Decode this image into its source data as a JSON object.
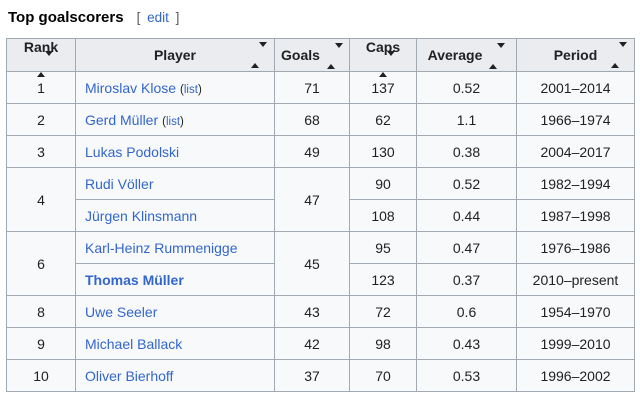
{
  "page": {
    "title": "Top goalscorers",
    "edit_open": "[ ",
    "edit_label": "edit",
    "edit_close": " ]"
  },
  "colors": {
    "link_blue": "#3366cc",
    "header_bg": "#eaecf0",
    "row_bg": "#f8f9fa",
    "border": "#a2a9b1",
    "text": "#202122"
  },
  "table": {
    "headers": [
      "Rank",
      "Player",
      "Goals",
      "Caps",
      "Average",
      "Period"
    ],
    "list_open": "(",
    "list_label": "list",
    "list_close": ")",
    "rows": [
      {
        "rank": "1",
        "player": "Miroslav Klose",
        "has_list": true,
        "goals": "71",
        "caps": "137",
        "average": "0.52",
        "period": "2001–2014"
      },
      {
        "rank": "2",
        "player": "Gerd Müller",
        "has_list": true,
        "goals": "68",
        "caps": "62",
        "average": "1.1",
        "period": "1966–1974"
      },
      {
        "rank": "3",
        "player": "Lukas Podolski",
        "has_list": false,
        "goals": "49",
        "caps": "130",
        "average": "0.38",
        "period": "2004–2017"
      },
      {
        "rank": "4",
        "player": "Rudi Völler",
        "has_list": false,
        "goals": "47",
        "caps": "90",
        "average": "0.52",
        "period": "1982–1994",
        "rank_rowspan": 2,
        "goals_rowspan": 2
      },
      {
        "player": "Jürgen Klinsmann",
        "has_list": false,
        "caps": "108",
        "average": "0.44",
        "period": "1987–1998"
      },
      {
        "rank": "6",
        "player": "Karl-Heinz Rummenigge",
        "has_list": false,
        "goals": "45",
        "caps": "95",
        "average": "0.47",
        "period": "1976–1986",
        "rank_rowspan": 2,
        "goals_rowspan": 2
      },
      {
        "player": "Thomas Müller",
        "has_list": false,
        "bold": true,
        "caps": "123",
        "average": "0.37",
        "period": "2010–present"
      },
      {
        "rank": "8",
        "player": "Uwe Seeler",
        "has_list": false,
        "goals": "43",
        "caps": "72",
        "average": "0.6",
        "period": "1954–1970"
      },
      {
        "rank": "9",
        "player": "Michael Ballack",
        "has_list": false,
        "goals": "42",
        "caps": "98",
        "average": "0.43",
        "period": "1999–2010"
      },
      {
        "rank": "10",
        "player": "Oliver Bierhoff",
        "has_list": false,
        "goals": "37",
        "caps": "70",
        "average": "0.53",
        "period": "1996–2002"
      }
    ]
  },
  "chart_data": {
    "type": "table",
    "title": "Top goalscorers",
    "columns": [
      "Rank",
      "Player",
      "Goals",
      "Caps",
      "Average",
      "Period"
    ],
    "rows": [
      [
        "1",
        "Miroslav Klose (list)",
        71,
        137,
        0.52,
        "2001–2014"
      ],
      [
        "2",
        "Gerd Müller (list)",
        68,
        62,
        1.1,
        "1966–1974"
      ],
      [
        "3",
        "Lukas Podolski",
        49,
        130,
        0.38,
        "2004–2017"
      ],
      [
        "4",
        "Rudi Völler",
        47,
        90,
        0.52,
        "1982–1994"
      ],
      [
        "4",
        "Jürgen Klinsmann",
        47,
        108,
        0.44,
        "1987–1998"
      ],
      [
        "6",
        "Karl-Heinz Rummenigge",
        45,
        95,
        0.47,
        "1976–1986"
      ],
      [
        "6",
        "Thomas Müller",
        45,
        123,
        0.37,
        "2010–present"
      ],
      [
        "8",
        "Uwe Seeler",
        43,
        72,
        0.6,
        "1954–1970"
      ],
      [
        "9",
        "Michael Ballack",
        42,
        98,
        0.43,
        "1999–2010"
      ],
      [
        "10",
        "Oliver Bierhoff",
        37,
        70,
        0.53,
        "1996–2002"
      ]
    ]
  }
}
